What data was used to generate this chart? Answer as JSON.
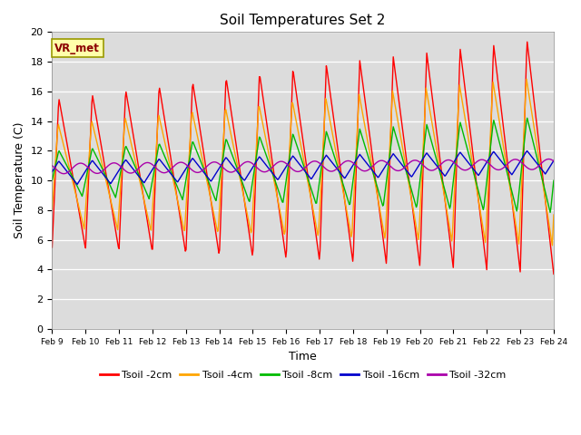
{
  "title": "Soil Temperatures Set 2",
  "xlabel": "Time",
  "ylabel": "Soil Temperature (C)",
  "ylim": [
    0,
    20
  ],
  "yticks": [
    0,
    2,
    4,
    6,
    8,
    10,
    12,
    14,
    16,
    18,
    20
  ],
  "xtick_labels": [
    "Feb 9",
    "Feb 10",
    "Feb 11",
    "Feb 12",
    "Feb 13",
    "Feb 14",
    "Feb 15",
    "Feb 16",
    "Feb 17",
    "Feb 18",
    "Feb 19",
    "Feb 20",
    "Feb 21",
    "Feb 22",
    "Feb 23",
    "Feb 24"
  ],
  "annotation": "VR_met",
  "plot_bg_color": "#dcdcdc",
  "series": {
    "Tsoil -2cm": {
      "color": "#ff0000",
      "lw": 1.0
    },
    "Tsoil -4cm": {
      "color": "#ffa500",
      "lw": 1.0
    },
    "Tsoil -8cm": {
      "color": "#00bb00",
      "lw": 1.0
    },
    "Tsoil -16cm": {
      "color": "#0000cc",
      "lw": 1.0
    },
    "Tsoil -32cm": {
      "color": "#aa00aa",
      "lw": 1.0
    }
  }
}
